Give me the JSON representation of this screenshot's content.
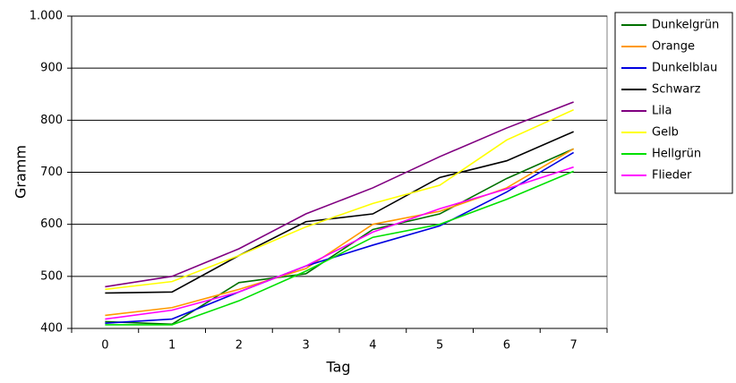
{
  "chart_data": {
    "type": "line",
    "x_label": "Tag",
    "y_label": "Gramm",
    "categories": [
      "0",
      "1",
      "2",
      "3",
      "4",
      "5",
      "6",
      "7"
    ],
    "series": [
      {
        "name": "Dunkelgrün",
        "color": "#007000",
        "values": [
          413,
          408,
          488,
          505,
          590,
          620,
          688,
          745
        ]
      },
      {
        "name": "Orange",
        "color": "#ff9900",
        "values": [
          425,
          440,
          475,
          515,
          600,
          625,
          670,
          745
        ]
      },
      {
        "name": "Dunkelblau",
        "color": "#0000e0",
        "values": [
          410,
          418,
          470,
          520,
          560,
          597,
          662,
          738
        ]
      },
      {
        "name": "Schwarz",
        "color": "#000000",
        "values": [
          468,
          470,
          540,
          605,
          620,
          690,
          722,
          778
        ]
      },
      {
        "name": "Lila",
        "color": "#800080",
        "values": [
          480,
          500,
          553,
          620,
          670,
          730,
          785,
          835
        ]
      },
      {
        "name": "Gelb",
        "color": "#ffff00",
        "values": [
          475,
          490,
          540,
          595,
          640,
          675,
          762,
          820
        ]
      },
      {
        "name": "Hellgrün",
        "color": "#00e000",
        "values": [
          407,
          407,
          453,
          510,
          575,
          600,
          648,
          702
        ]
      },
      {
        "name": "Flieder",
        "color": "#ff00ff",
        "values": [
          418,
          435,
          470,
          520,
          585,
          630,
          668,
          710
        ]
      }
    ],
    "ylim": [
      400,
      1000
    ],
    "yticks": [
      400,
      500,
      600,
      700,
      800,
      900,
      {
        "value": 1000,
        "label": "1.000"
      }
    ],
    "grid": true,
    "legend": "right"
  }
}
